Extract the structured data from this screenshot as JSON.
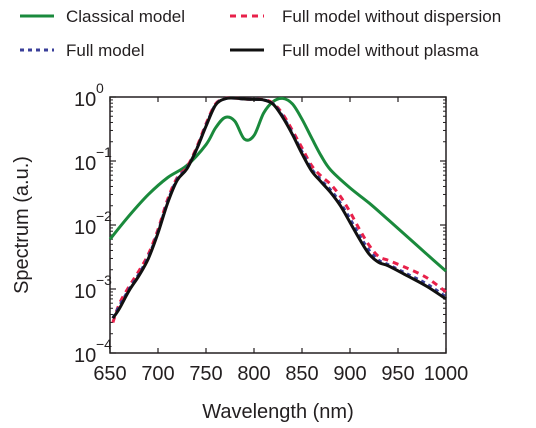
{
  "chart_data": {
    "type": "line",
    "xlabel": "Wavelength (nm)",
    "ylabel": "Spectrum (a.u.)",
    "x_scale": "linear",
    "y_scale": "log",
    "xlim": [
      650,
      1000
    ],
    "ylim": [
      0.0001,
      1
    ],
    "x_ticks": [
      "650",
      "700",
      "750",
      "800",
      "850",
      "900",
      "950",
      "1000"
    ],
    "y_ticks": [
      {
        "base": "10",
        "exp": "0",
        "value": 1
      },
      {
        "base": "10",
        "exp": "−1",
        "value": 0.1
      },
      {
        "base": "10",
        "exp": "−2",
        "value": 0.01
      },
      {
        "base": "10",
        "exp": "−3",
        "value": 0.001
      },
      {
        "base": "10",
        "exp": "−4",
        "value": 0.0001
      }
    ],
    "grid": false,
    "legend_position": "top",
    "series": [
      {
        "name": "Classical model",
        "color": "#1a8a3c",
        "dash": "solid",
        "x": [
          650,
          670,
          690,
          710,
          730,
          750,
          760,
          770,
          780,
          790,
          800,
          810,
          820,
          830,
          840,
          850,
          860,
          870,
          880,
          900,
          920,
          940,
          960,
          980,
          1000
        ],
        "y": [
          0.006,
          0.014,
          0.03,
          0.055,
          0.085,
          0.18,
          0.33,
          0.48,
          0.42,
          0.22,
          0.25,
          0.56,
          0.85,
          0.95,
          0.78,
          0.45,
          0.23,
          0.12,
          0.072,
          0.038,
          0.022,
          0.012,
          0.0065,
          0.0035,
          0.0019
        ]
      },
      {
        "name": "Full model without dispersion",
        "color": "#e8204a",
        "dash": "dashed",
        "x": [
          653,
          660,
          670,
          680,
          690,
          700,
          710,
          720,
          730,
          740,
          750,
          760,
          770,
          780,
          790,
          800,
          810,
          820,
          830,
          840,
          850,
          860,
          870,
          880,
          890,
          900,
          910,
          920,
          930,
          940,
          960,
          980,
          1000
        ],
        "y": [
          0.0003,
          0.0006,
          0.0011,
          0.0019,
          0.0035,
          0.0085,
          0.025,
          0.055,
          0.08,
          0.16,
          0.38,
          0.78,
          0.95,
          0.96,
          0.93,
          0.92,
          0.91,
          0.8,
          0.54,
          0.3,
          0.16,
          0.085,
          0.058,
          0.043,
          0.028,
          0.016,
          0.0085,
          0.0048,
          0.0032,
          0.0028,
          0.0021,
          0.0015,
          0.0009
        ]
      },
      {
        "name": "Full model",
        "color": "#3a3f9a",
        "dash": "dotted",
        "x": [
          653,
          660,
          670,
          680,
          690,
          700,
          710,
          720,
          730,
          740,
          750,
          760,
          770,
          780,
          790,
          800,
          810,
          820,
          830,
          840,
          850,
          860,
          870,
          880,
          890,
          900,
          910,
          920,
          930,
          940,
          960,
          980,
          1000
        ],
        "y": [
          0.00035,
          0.00055,
          0.001,
          0.0017,
          0.0032,
          0.0078,
          0.023,
          0.052,
          0.077,
          0.15,
          0.36,
          0.76,
          0.94,
          0.96,
          0.93,
          0.92,
          0.9,
          0.78,
          0.5,
          0.27,
          0.14,
          0.075,
          0.05,
          0.035,
          0.022,
          0.0125,
          0.0068,
          0.004,
          0.0028,
          0.0024,
          0.0017,
          0.0012,
          0.00075
        ]
      },
      {
        "name": "Full model without plasma",
        "color": "#111111",
        "dash": "solid",
        "x": [
          653,
          660,
          670,
          680,
          690,
          700,
          710,
          720,
          730,
          740,
          750,
          760,
          770,
          780,
          790,
          800,
          810,
          820,
          830,
          840,
          850,
          860,
          870,
          880,
          890,
          900,
          910,
          920,
          930,
          940,
          960,
          980,
          1000
        ],
        "y": [
          0.00035,
          0.0005,
          0.00095,
          0.0016,
          0.003,
          0.0075,
          0.022,
          0.05,
          0.075,
          0.15,
          0.35,
          0.75,
          0.94,
          0.96,
          0.93,
          0.92,
          0.9,
          0.77,
          0.48,
          0.26,
          0.13,
          0.07,
          0.047,
          0.032,
          0.02,
          0.011,
          0.006,
          0.0035,
          0.0026,
          0.0023,
          0.0016,
          0.0011,
          0.0007
        ]
      }
    ]
  }
}
